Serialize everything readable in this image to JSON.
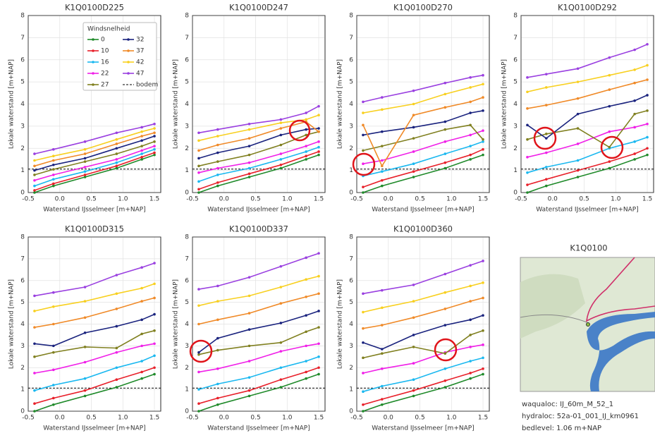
{
  "legend": {
    "title": "Windsnelheid"
  },
  "series_styles": [
    {
      "name": "0",
      "color": "#1f8a2a"
    },
    {
      "name": "10",
      "color": "#e8202a"
    },
    {
      "name": "16",
      "color": "#1ab8f0"
    },
    {
      "name": "22",
      "color": "#f020e8"
    },
    {
      "name": "27",
      "color": "#808020"
    },
    {
      "name": "32",
      "color": "#1a237e"
    },
    {
      "name": "37",
      "color": "#f08a28"
    },
    {
      "name": "42",
      "color": "#f8d020"
    },
    {
      "name": "47",
      "color": "#9a40e0"
    }
  ],
  "reference_line": {
    "name": "bodem",
    "value": 1.06,
    "color": "#000000",
    "dashed": true
  },
  "chart_data": [
    {
      "type": "line",
      "title": "K1Q0100D225",
      "xlabel": "Waterstand IJsselmeer [m+NAP]",
      "ylabel": "Lokale waterstand [m+NAP]",
      "legend": true,
      "x": [
        -0.4,
        -0.1,
        0.4,
        0.9,
        1.3,
        1.5
      ],
      "xlim": [
        -0.5,
        1.6
      ],
      "ylim": [
        0,
        8
      ],
      "xticks": [
        -0.5,
        {
          "value": 0,
          "label": "0.0"
        },
        0.5,
        {
          "value": 1,
          "label": "1.0"
        },
        1.5
      ],
      "yticks": [
        0,
        1,
        2,
        3,
        4,
        5,
        6,
        7,
        8
      ],
      "series": [
        {
          "values": [
            0.0,
            0.3,
            0.7,
            1.1,
            1.5,
            1.7
          ]
        },
        {
          "values": [
            0.1,
            0.4,
            0.8,
            1.2,
            1.6,
            1.8
          ]
        },
        {
          "values": [
            0.3,
            0.6,
            0.95,
            1.35,
            1.75,
            1.95
          ]
        },
        {
          "values": [
            0.55,
            0.8,
            1.15,
            1.5,
            1.9,
            2.1
          ]
        },
        {
          "values": [
            0.8,
            1.05,
            1.4,
            1.75,
            2.1,
            2.3
          ]
        },
        {
          "values": [
            1.0,
            1.25,
            1.55,
            2.0,
            2.35,
            2.55
          ]
        },
        {
          "values": [
            1.2,
            1.45,
            1.75,
            2.2,
            2.55,
            2.7
          ]
        },
        {
          "values": [
            1.45,
            1.65,
            1.95,
            2.4,
            2.75,
            2.9
          ]
        },
        {
          "values": [
            1.75,
            1.95,
            2.3,
            2.7,
            2.95,
            3.1
          ]
        }
      ]
    },
    {
      "type": "line",
      "title": "K1Q0100D247",
      "xlabel": "Waterstand IJsselmeer [m+NAP]",
      "ylabel": "Lokale waterstand [m+NAP]",
      "legend": false,
      "x": [
        -0.4,
        -0.1,
        0.4,
        0.9,
        1.3,
        1.5
      ],
      "xlim": [
        -0.5,
        1.6
      ],
      "ylim": [
        0,
        8
      ],
      "xticks": [
        -0.5,
        {
          "value": 0,
          "label": "0.0"
        },
        0.5,
        {
          "value": 1,
          "label": "1.0"
        },
        1.5
      ],
      "yticks": [
        0,
        1,
        2,
        3,
        4,
        5,
        6,
        7,
        8
      ],
      "series": [
        {
          "values": [
            0.0,
            0.3,
            0.7,
            1.1,
            1.5,
            1.7
          ]
        },
        {
          "values": [
            0.15,
            0.45,
            0.85,
            1.25,
            1.65,
            1.85
          ]
        },
        {
          "values": [
            0.5,
            0.8,
            1.1,
            1.5,
            1.85,
            2.05
          ]
        },
        {
          "values": [
            0.9,
            1.1,
            1.35,
            1.75,
            2.1,
            2.3
          ]
        },
        {
          "values": [
            1.2,
            1.4,
            1.7,
            2.15,
            2.6,
            2.75
          ]
        },
        {
          "values": [
            1.55,
            1.8,
            2.1,
            2.6,
            2.85,
            2.9
          ]
        },
        {
          "values": [
            1.9,
            2.15,
            2.45,
            2.9,
            3.2,
            2.75
          ]
        },
        {
          "values": [
            2.35,
            2.55,
            2.85,
            3.15,
            3.3,
            3.5
          ]
        },
        {
          "values": [
            2.7,
            2.85,
            3.1,
            3.3,
            3.6,
            3.9
          ]
        }
      ]
    },
    {
      "type": "line",
      "title": "K1Q0100D270",
      "xlabel": "Waterstand IJsselmeer [m+NAP]",
      "ylabel": "Lokale waterstand [m+NAP]",
      "legend": false,
      "x": [
        -0.4,
        -0.1,
        0.4,
        0.9,
        1.3,
        1.5
      ],
      "xlim": [
        -0.5,
        1.6
      ],
      "ylim": [
        0,
        8
      ],
      "xticks": [
        -0.5,
        {
          "value": 0,
          "label": "0.0"
        },
        0.5,
        {
          "value": 1,
          "label": "1.0"
        },
        1.5
      ],
      "yticks": [
        0,
        1,
        2,
        3,
        4,
        5,
        6,
        7,
        8
      ],
      "series": [
        {
          "values": [
            0.0,
            0.3,
            0.7,
            1.1,
            1.5,
            1.7
          ]
        },
        {
          "values": [
            0.25,
            0.55,
            0.95,
            1.35,
            1.7,
            1.95
          ]
        },
        {
          "values": [
            0.75,
            0.95,
            1.3,
            1.75,
            2.1,
            2.3
          ]
        },
        {
          "values": [
            1.3,
            1.45,
            1.85,
            2.3,
            2.6,
            2.8
          ]
        },
        {
          "values": [
            1.9,
            2.1,
            2.45,
            2.85,
            3.05,
            2.4
          ]
        },
        {
          "values": [
            2.6,
            2.75,
            2.95,
            3.2,
            3.6,
            3.7
          ]
        },
        {
          "values": [
            3.05,
            1.2,
            3.5,
            3.85,
            4.1,
            4.3
          ]
        },
        {
          "values": [
            3.6,
            3.75,
            4.0,
            4.45,
            4.75,
            4.9
          ]
        },
        {
          "values": [
            4.1,
            4.3,
            4.6,
            4.95,
            5.2,
            5.3
          ]
        }
      ]
    },
    {
      "type": "line",
      "title": "K1Q0100D292",
      "xlabel": "Waterstand IJsselmeer [m+NAP]",
      "ylabel": "Lokale waterstand [m+NAP]",
      "legend": false,
      "x": [
        -0.4,
        -0.1,
        0.4,
        0.9,
        1.3,
        1.5
      ],
      "xlim": [
        -0.5,
        1.6
      ],
      "ylim": [
        0,
        8
      ],
      "xticks": [
        -0.5,
        {
          "value": 0,
          "label": "0.0"
        },
        0.5,
        {
          "value": 1,
          "label": "1.0"
        },
        1.5
      ],
      "yticks": [
        0,
        1,
        2,
        3,
        4,
        5,
        6,
        7,
        8
      ],
      "series": [
        {
          "values": [
            0.0,
            0.3,
            0.7,
            1.1,
            1.5,
            1.7
          ]
        },
        {
          "values": [
            0.35,
            0.6,
            1.0,
            1.4,
            1.75,
            2.0
          ]
        },
        {
          "values": [
            0.9,
            1.15,
            1.45,
            2.0,
            2.3,
            2.5
          ]
        },
        {
          "values": [
            1.6,
            1.8,
            2.2,
            2.75,
            2.95,
            3.1
          ]
        },
        {
          "values": [
            2.4,
            2.65,
            2.9,
            2.05,
            3.55,
            3.7
          ]
        },
        {
          "values": [
            3.05,
            2.45,
            3.55,
            3.9,
            4.15,
            4.4
          ]
        },
        {
          "values": [
            3.8,
            3.95,
            4.25,
            4.65,
            4.95,
            5.1
          ]
        },
        {
          "values": [
            4.55,
            4.75,
            5.0,
            5.3,
            5.55,
            5.75
          ]
        },
        {
          "values": [
            5.2,
            5.35,
            5.6,
            6.1,
            6.45,
            6.7
          ]
        }
      ]
    },
    {
      "type": "line",
      "title": "K1Q0100D315",
      "xlabel": "Waterstand IJsselmeer [m+NAP]",
      "ylabel": "Lokale waterstand [m+NAP]",
      "legend": false,
      "x": [
        -0.4,
        -0.1,
        0.4,
        0.9,
        1.3,
        1.5
      ],
      "xlim": [
        -0.5,
        1.6
      ],
      "ylim": [
        0,
        8
      ],
      "xticks": [
        -0.5,
        {
          "value": 0,
          "label": "0.0"
        },
        0.5,
        {
          "value": 1,
          "label": "1.0"
        },
        1.5
      ],
      "yticks": [
        0,
        1,
        2,
        3,
        4,
        5,
        6,
        7,
        8
      ],
      "series": [
        {
          "values": [
            0.0,
            0.3,
            0.7,
            1.1,
            1.5,
            1.7
          ]
        },
        {
          "values": [
            0.35,
            0.6,
            0.95,
            1.45,
            1.8,
            2.0
          ]
        },
        {
          "values": [
            0.95,
            1.2,
            1.5,
            2.0,
            2.3,
            2.55
          ]
        },
        {
          "values": [
            1.75,
            1.9,
            2.25,
            2.7,
            3.0,
            3.1
          ]
        },
        {
          "values": [
            2.5,
            2.7,
            2.95,
            2.9,
            3.55,
            3.7
          ]
        },
        {
          "values": [
            3.1,
            3.0,
            3.6,
            3.9,
            4.2,
            4.45
          ]
        },
        {
          "values": [
            3.85,
            4.0,
            4.3,
            4.7,
            5.05,
            5.2
          ]
        },
        {
          "values": [
            4.6,
            4.8,
            5.05,
            5.4,
            5.65,
            5.85
          ]
        },
        {
          "values": [
            5.3,
            5.45,
            5.7,
            6.25,
            6.6,
            6.8
          ]
        }
      ]
    },
    {
      "type": "line",
      "title": "K1Q0100D337",
      "xlabel": "Waterstand IJsselmeer [m+NAP]",
      "ylabel": "Lokale waterstand [m+NAP]",
      "legend": false,
      "x": [
        -0.4,
        -0.1,
        0.4,
        0.9,
        1.3,
        1.5
      ],
      "xlim": [
        -0.5,
        1.6
      ],
      "ylim": [
        0,
        8
      ],
      "xticks": [
        -0.5,
        {
          "value": 0,
          "label": "0.0"
        },
        0.5,
        {
          "value": 1,
          "label": "1.0"
        },
        1.5
      ],
      "yticks": [
        0,
        1,
        2,
        3,
        4,
        5,
        6,
        7,
        8
      ],
      "series": [
        {
          "values": [
            0.0,
            0.3,
            0.7,
            1.1,
            1.5,
            1.7
          ]
        },
        {
          "values": [
            0.35,
            0.6,
            0.95,
            1.45,
            1.8,
            2.0
          ]
        },
        {
          "values": [
            1.0,
            1.25,
            1.55,
            2.0,
            2.3,
            2.5
          ]
        },
        {
          "values": [
            1.8,
            1.95,
            2.3,
            2.75,
            3.0,
            3.1
          ]
        },
        {
          "values": [
            2.6,
            2.8,
            3.0,
            3.15,
            3.65,
            3.85
          ]
        },
        {
          "values": [
            2.7,
            3.35,
            3.75,
            4.05,
            4.4,
            4.6
          ]
        },
        {
          "values": [
            4.0,
            4.2,
            4.5,
            4.95,
            5.25,
            5.4
          ]
        },
        {
          "values": [
            4.85,
            5.05,
            5.3,
            5.7,
            6.05,
            6.2
          ]
        },
        {
          "values": [
            5.6,
            5.75,
            6.15,
            6.65,
            7.05,
            7.25
          ]
        }
      ]
    },
    {
      "type": "line",
      "title": "K1Q0100D360",
      "xlabel": "Waterstand IJsselmeer [m+NAP]",
      "ylabel": "Lokale waterstand [m+NAP]",
      "legend": false,
      "x": [
        -0.4,
        -0.1,
        0.4,
        0.9,
        1.3,
        1.5
      ],
      "xlim": [
        -0.5,
        1.6
      ],
      "ylim": [
        0,
        8
      ],
      "xticks": [
        -0.5,
        {
          "value": 0,
          "label": "0.0"
        },
        0.5,
        {
          "value": 1,
          "label": "1.0"
        },
        1.5
      ],
      "yticks": [
        0,
        1,
        2,
        3,
        4,
        5,
        6,
        7,
        8
      ],
      "series": [
        {
          "values": [
            0.0,
            0.3,
            0.7,
            1.1,
            1.5,
            1.7
          ]
        },
        {
          "values": [
            0.3,
            0.55,
            0.95,
            1.4,
            1.75,
            1.95
          ]
        },
        {
          "values": [
            0.9,
            1.15,
            1.45,
            1.95,
            2.3,
            2.45
          ]
        },
        {
          "values": [
            1.75,
            1.95,
            2.2,
            2.7,
            2.95,
            3.05
          ]
        },
        {
          "values": [
            2.45,
            2.65,
            2.95,
            2.65,
            3.5,
            3.7
          ]
        },
        {
          "values": [
            3.15,
            2.85,
            3.5,
            3.95,
            4.2,
            4.4
          ]
        },
        {
          "values": [
            3.8,
            3.95,
            4.3,
            4.7,
            5.05,
            5.2
          ]
        },
        {
          "values": [
            4.55,
            4.75,
            5.05,
            5.45,
            5.75,
            5.9
          ]
        },
        {
          "values": [
            5.4,
            5.55,
            5.8,
            6.3,
            6.7,
            6.9
          ]
        }
      ]
    }
  ],
  "map_panel": {
    "title": "K1Q0100",
    "info": [
      "waqualoc: IJ_60m_M_52_1",
      "hydraloc: 52a-01_001_IJ_km0961",
      "bedlevel: 1.06 m+NAP"
    ]
  }
}
